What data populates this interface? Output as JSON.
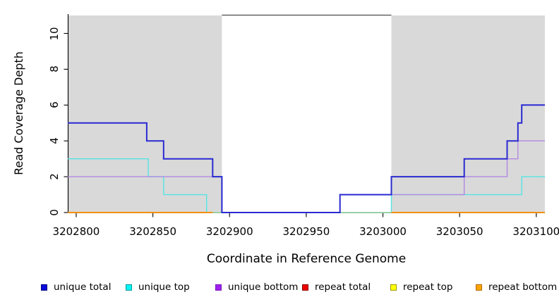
{
  "figure": {
    "background": "#ffffff",
    "plot_background": "#ffffff",
    "shaded_region_color": "#d9d9d9",
    "axis_color": "#000000",
    "inner_border_color": "#4d4d4d"
  },
  "chart_data": {
    "type": "line",
    "subtype": "step-coverage",
    "title": "",
    "xlabel": "Coordinate in Reference Genome",
    "ylabel": "Read Coverage Depth",
    "x_range": [
      3202794.5,
      3203105.6
    ],
    "y_range": [
      0,
      11.08
    ],
    "x_ticks": [
      3202800,
      3202850,
      3202900,
      3202950,
      3203000,
      3203050,
      3203100
    ],
    "y_ticks": [
      0,
      2,
      4,
      6,
      8,
      10
    ],
    "grid": "off",
    "legend_position": "bottom",
    "shaded_regions": [
      {
        "name": "repeat-region-left",
        "x0": 3202794.5,
        "x1": 3202895
      },
      {
        "name": "repeat-region-right",
        "x0": 3203005.5,
        "x1": 3203105.6
      }
    ],
    "series": [
      {
        "name": "unique total",
        "color": "#2a2ad2",
        "steps": [
          [
            3202794.5,
            5
          ],
          [
            3202846,
            4
          ],
          [
            3202857,
            3
          ],
          [
            3202889,
            2
          ],
          [
            3202895,
            0
          ],
          [
            3202972,
            1
          ],
          [
            3203005.5,
            2
          ],
          [
            3203053,
            3
          ],
          [
            3203081,
            4
          ],
          [
            3203088,
            5
          ],
          [
            3203090.5,
            6
          ]
        ],
        "x_end": 3203105.6
      },
      {
        "name": "unique top",
        "color": "#55e4e4",
        "steps": [
          [
            3202794.5,
            3
          ],
          [
            3202847,
            2
          ],
          [
            3202857,
            1
          ],
          [
            3202885,
            0
          ],
          [
            3203005.5,
            1
          ],
          [
            3203090.5,
            2
          ]
        ],
        "x_end": 3203105.6
      },
      {
        "name": "unique bottom",
        "color": "#b287e2",
        "steps": [
          [
            3202794.5,
            2
          ],
          [
            3202895,
            0
          ],
          [
            3202972,
            1
          ],
          [
            3203053,
            2
          ],
          [
            3203081,
            3
          ],
          [
            3203088,
            4
          ]
        ],
        "x_end": 3203105.6
      },
      {
        "name": "repeat total",
        "color": "#dd2222",
        "segments": [
          {
            "x0": 3202794.5,
            "x1": 3202889,
            "value": 0
          },
          {
            "x0": 3203005.5,
            "x1": 3203105.6,
            "value": 0
          }
        ]
      },
      {
        "name": "repeat top",
        "color": "#eded44",
        "segments": [
          {
            "x0": 3202794.5,
            "x1": 3202889,
            "value": 0
          },
          {
            "x0": 3203005.5,
            "x1": 3203105.6,
            "value": 0
          }
        ]
      },
      {
        "name": "repeat bottom",
        "color": "#ff8c00",
        "segments": [
          {
            "x0": 3202794.5,
            "x1": 3202889,
            "value": 0
          },
          {
            "x0": 3203005.5,
            "x1": 3203105.6,
            "value": 0
          }
        ]
      }
    ],
    "overlay_segments": [
      {
        "name": "blend-segment",
        "color": "#a9d9a4",
        "x0": 3202889,
        "x1": 3202895,
        "value": 0
      },
      {
        "name": "blend-segment",
        "color": "#a9d9a4",
        "x0": 3202972,
        "x1": 3203005.5,
        "value": 0
      }
    ],
    "legend": [
      {
        "label": "unique total",
        "fill": "#0b0bdc",
        "border": "#000080"
      },
      {
        "label": "unique top",
        "fill": "#00f5f5",
        "border": "#009a9a"
      },
      {
        "label": "unique bottom",
        "fill": "#a020f0",
        "border": "#7a18b8"
      },
      {
        "label": "repeat total",
        "fill": "#ee0000",
        "border": "#8b0000"
      },
      {
        "label": "repeat top",
        "fill": "#ffff00",
        "border": "#9a9a00"
      },
      {
        "label": "repeat bottom",
        "fill": "#ffa500",
        "border": "#b36b00"
      }
    ]
  }
}
